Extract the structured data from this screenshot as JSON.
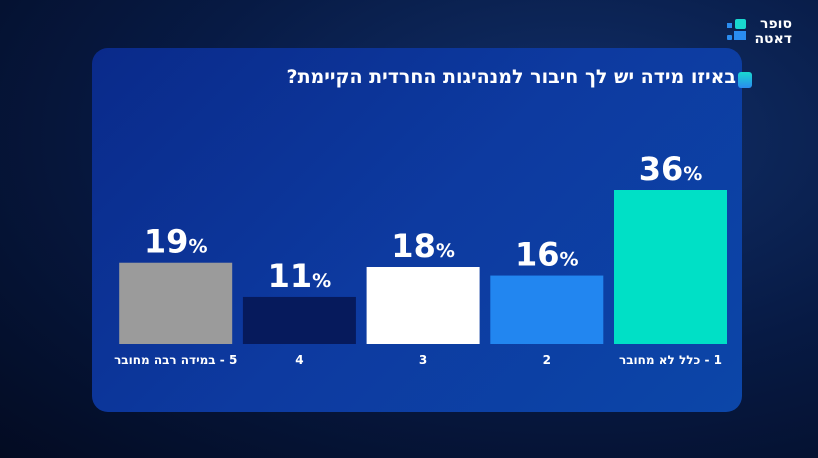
{
  "logo": {
    "line1": "סופר",
    "line2": "דאטה"
  },
  "chart_data": {
    "type": "bar",
    "title": "באיזו מידה יש לך חיבור למנהיגות החרדית הקיימת?",
    "categories": [
      "1 - כלל לא מחובר",
      "2",
      "3",
      "4",
      "5 - במידה רבה מחובר"
    ],
    "values": [
      36,
      16,
      18,
      11,
      19
    ],
    "unit": "%",
    "colors": [
      "#00e0c6",
      "#2286f0",
      "#ffffff",
      "#061a5c",
      "#9b9b9b"
    ],
    "ylim": [
      0,
      36
    ],
    "grid": false,
    "direction": "rtl"
  }
}
